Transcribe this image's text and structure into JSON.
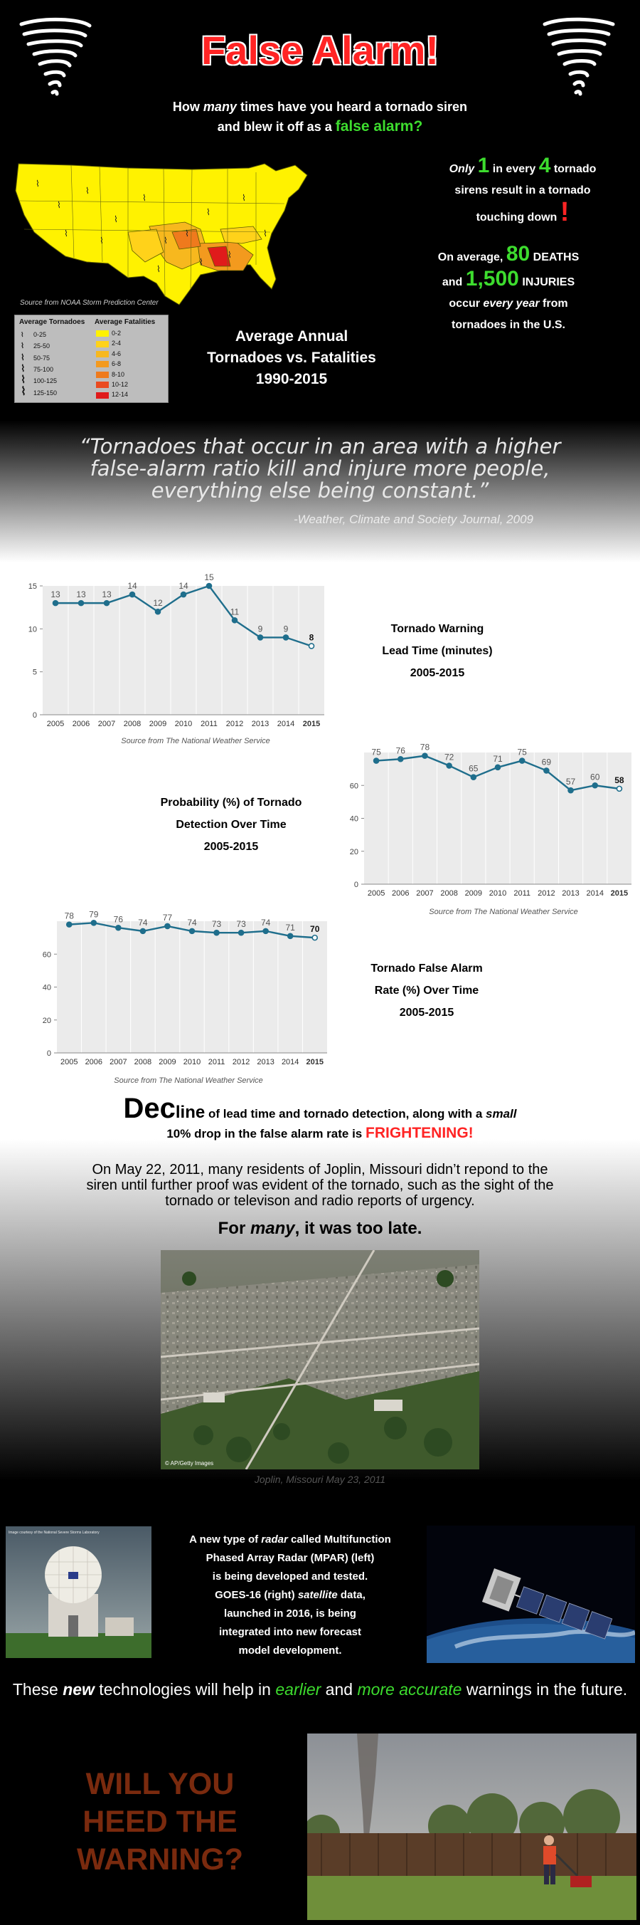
{
  "header": {
    "title": "False Alarm!",
    "subtitle_line1_pre": "How ",
    "subtitle_line1_em": "many",
    "subtitle_line1_post": " times have you heard a tornado siren",
    "subtitle_line2_pre": "and blew it off as a ",
    "subtitle_line2_em": "false alarm?"
  },
  "map": {
    "source": "Source from NOAA Storm Prediction Center",
    "legend_tornadoes_title": "Average Tornadoes",
    "legend_fatalities_title": "Average Fatalities",
    "tornado_ranges": [
      "0-25",
      "25-50",
      "50-75",
      "75-100",
      "100-125",
      "125-150"
    ],
    "fatality_ranges": [
      "0-2",
      "2-4",
      "4-6",
      "6-8",
      "8-10",
      "10-12",
      "12-14"
    ],
    "fatality_colors": [
      "#fff200",
      "#ffd21a",
      "#f7b81e",
      "#f39a1e",
      "#ef7a1d",
      "#ea4a1f",
      "#e01b1b"
    ],
    "title_line1": "Average Annual",
    "title_line2": "Tornadoes vs. Fatalities",
    "title_line3": "1990-2015"
  },
  "stats": {
    "ratio_only": "Only",
    "ratio_one": "1",
    "ratio_in_every": "in every",
    "ratio_four": "4",
    "ratio_tornado": "tornado",
    "ratio_line2": "sirens result in a tornado",
    "ratio_line3": "touching down",
    "bang": "!",
    "deaths_pre": "On average,",
    "deaths_num": "80",
    "deaths_label": "DEATHS",
    "and": "and",
    "injuries_num": "1,500",
    "injuries_label": "INJURIES",
    "occur_pre": "occur ",
    "occur_em": "every year",
    "occur_post": " from",
    "occur_line4": "tornadoes in the U.S."
  },
  "quote": {
    "line1": "“Tornadoes that occur in an area with a higher",
    "line2": "false-alarm ratio kill and injure more people,",
    "line3": "everything else being constant.”",
    "cite": "-Weather, Climate and Society Journal, 2009"
  },
  "chart_data": [
    {
      "type": "line",
      "title": "Tornado Warning Lead Time (minutes) 2005-2015",
      "title_lines": [
        "Tornado Warning",
        "Lead Time (minutes)",
        "2005-2015"
      ],
      "source": "Source from The National Weather Service",
      "x": [
        "2005",
        "2006",
        "2007",
        "2008",
        "2009",
        "2010",
        "2011",
        "2012",
        "2013",
        "2014",
        "2015"
      ],
      "values": [
        13,
        13,
        13,
        14,
        12,
        14,
        15,
        11,
        9,
        9,
        8
      ],
      "ylim": [
        0,
        15
      ],
      "yticks": [
        0,
        5,
        10,
        15
      ],
      "color": "#1f6e8c"
    },
    {
      "type": "line",
      "title": "Probability (%) of Tornado Detection Over Time 2005-2015",
      "title_lines": [
        "Probability (%) of Tornado",
        "Detection Over Time",
        "2005-2015"
      ],
      "source": "Source from The National Weather Service",
      "x": [
        "2005",
        "2006",
        "2007",
        "2008",
        "2009",
        "2010",
        "2011",
        "2012",
        "2013",
        "2014",
        "2015"
      ],
      "values": [
        75,
        76,
        78,
        72,
        65,
        71,
        75,
        69,
        57,
        60,
        58
      ],
      "ylim": [
        0,
        80
      ],
      "yticks": [
        0,
        20,
        40,
        60
      ],
      "color": "#1f6e8c"
    },
    {
      "type": "line",
      "title": "Tornado False Alarm Rate (%) Over Time 2005-2015",
      "title_lines": [
        "Tornado False Alarm",
        "Rate (%) Over Time",
        "2005-2015"
      ],
      "source": "Source from The National Weather Service",
      "x": [
        "2005",
        "2006",
        "2007",
        "2008",
        "2009",
        "2010",
        "2011",
        "2012",
        "2013",
        "2014",
        "2015"
      ],
      "values": [
        78,
        79,
        76,
        74,
        77,
        74,
        73,
        73,
        74,
        71,
        70
      ],
      "ylim": [
        0,
        80
      ],
      "yticks": [
        0,
        20,
        40,
        60
      ],
      "color": "#1f6e8c"
    }
  ],
  "story": {
    "decline_big": "Dec",
    "decline_small_caps": "line",
    "decline_rest1": " of lead time and tornado detection, along with a ",
    "decline_em": "small",
    "decline_rest2": "10% drop in the false alarm rate is ",
    "decline_red": "FRIGHTENING!",
    "joplin": "On May 22, 2011, many residents of Joplin, Missouri didn’t repond to the siren until further proof was evident of the tornado, such as the sight of the tornado or televison and radio reports of urgency.",
    "late_pre": "For ",
    "late_em": "many",
    "late_post": ", it was too late.",
    "photo_credit": "© AP/Getty Images",
    "caption": "Joplin, Missouri May 23, 2011"
  },
  "tech": {
    "radar_credit": "Image courtesy of the National Severe Storms Laboratory",
    "line1_pre": "A new type of ",
    "line1_em": "radar",
    "line1_post": " called Multifunction",
    "line2": "Phased Array Radar (MPAR) (left)",
    "line3": "is being developed and tested.",
    "line4_pre": "GOES-16 (right) ",
    "line4_em": "satellite",
    "line4_post": " data,",
    "line5": "launched in 2016, is being",
    "line6": "integrated into new forecast",
    "line7": "model development.",
    "future_pre": "These ",
    "future_new": "new",
    "future_mid1": " technologies will help in ",
    "future_earlier": "earlier",
    "future_mid2": " and ",
    "future_accurate": "more accurate",
    "future_post": " warnings in the future."
  },
  "closing": {
    "line1": "WILL YOU",
    "line2": "HEED THE",
    "line3": "WARNING?"
  }
}
